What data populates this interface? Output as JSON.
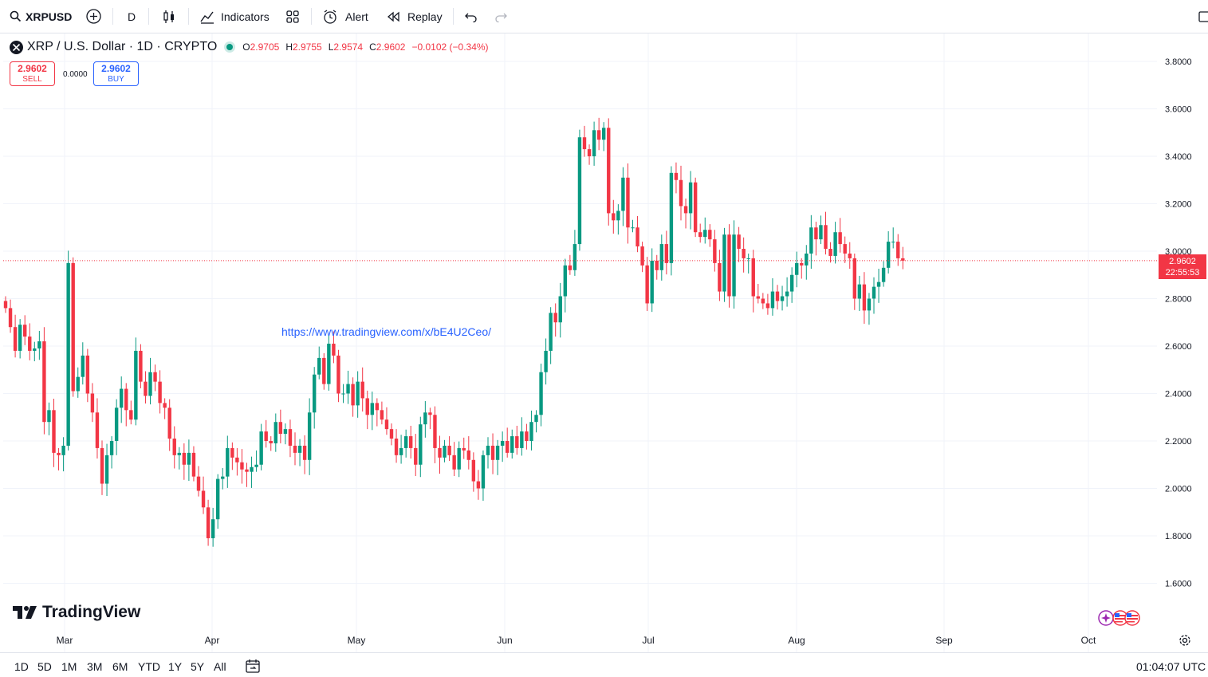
{
  "toolbar": {
    "symbol": "XRPUSD",
    "interval": "D",
    "indicators_label": "Indicators",
    "alert_label": "Alert",
    "replay_label": "Replay"
  },
  "legend": {
    "title": "XRP / U.S. Dollar · 1D · CRYPTO",
    "o_key": "O",
    "o_val": "2.9705",
    "h_key": "H",
    "h_val": "2.9755",
    "l_key": "L",
    "l_val": "2.9574",
    "c_key": "C",
    "c_val": "2.9602",
    "change": "−0.0102 (−0.34%)"
  },
  "trade": {
    "sell_price": "2.9602",
    "sell_label": "SELL",
    "spread": "0.0000",
    "buy_price": "2.9602",
    "buy_label": "BUY"
  },
  "watermark_url": "https://www.tradingview.com/x/bE4U2Ceo/",
  "brand": "TradingView",
  "price_label": {
    "price": "2.9602",
    "countdown": "22:55:53"
  },
  "bottom": {
    "ranges": [
      "1D",
      "5D",
      "1M",
      "3M",
      "6M",
      "YTD",
      "1Y",
      "5Y",
      "All"
    ],
    "clock": "01:04:07 UTC"
  },
  "colors": {
    "up": "#089981",
    "down": "#f23645",
    "grid": "#f0f3fa",
    "link": "#2962ff"
  },
  "chart_data": {
    "type": "candlestick",
    "y_ticks": [
      "3.8000",
      "3.6000",
      "3.4000",
      "3.2000",
      "3.0000",
      "2.8000",
      "2.6000",
      "2.4000",
      "2.2000",
      "2.0000",
      "1.8000",
      "1.6000"
    ],
    "ylim": [
      1.5,
      3.85
    ],
    "x_ticks": [
      "Mar",
      "Apr",
      "May",
      "Jun",
      "Jul",
      "Aug",
      "Sep",
      "Oct"
    ],
    "last_close": 2.9602,
    "closes": [
      2.76,
      2.68,
      2.58,
      2.69,
      2.64,
      2.58,
      2.59,
      2.62,
      2.28,
      2.33,
      2.15,
      2.14,
      2.18,
      2.95,
      2.41,
      2.47,
      2.56,
      2.4,
      2.32,
      2.17,
      2.02,
      2.14,
      2.2,
      2.34,
      2.42,
      2.33,
      2.29,
      2.58,
      2.45,
      2.39,
      2.49,
      2.45,
      2.36,
      2.34,
      2.21,
      2.14,
      2.15,
      2.1,
      2.15,
      2.05,
      1.99,
      1.92,
      1.79,
      1.87,
      2.04,
      2.05,
      2.17,
      2.13,
      2.11,
      2.08,
      2.07,
      2.09,
      2.1,
      2.24,
      2.2,
      2.19,
      2.28,
      2.23,
      2.25,
      2.18,
      2.15,
      2.18,
      2.12,
      2.32,
      2.48,
      2.55,
      2.44,
      2.61,
      2.56,
      2.4,
      2.4,
      2.44,
      2.35,
      2.45,
      2.38,
      2.31,
      2.36,
      2.33,
      2.29,
      2.25,
      2.21,
      2.14,
      2.17,
      2.22,
      2.17,
      2.1,
      2.27,
      2.32,
      2.31,
      2.17,
      2.13,
      2.18,
      2.14,
      2.08,
      2.17,
      2.16,
      2.12,
      2.03,
      2.0,
      2.14,
      2.18,
      2.12,
      2.18,
      2.2,
      2.15,
      2.22,
      2.17,
      2.24,
      2.2,
      2.28,
      2.31,
      2.49,
      2.58,
      2.74,
      2.7,
      2.81,
      2.94,
      2.92,
      3.03,
      3.48,
      3.43,
      3.4,
      3.51,
      3.47,
      3.52,
      3.16,
      3.13,
      3.17,
      3.31,
      3.1,
      3.1,
      3.02,
      2.94,
      2.78,
      2.96,
      2.92,
      3.03,
      2.95,
      3.33,
      3.3,
      3.19,
      3.16,
      3.29,
      3.08,
      3.06,
      3.09,
      3.05,
      2.95,
      2.83,
      3.07,
      2.81,
      3.07,
      3.01,
      2.97,
      2.97,
      2.81,
      2.8,
      2.78,
      2.76,
      2.83,
      2.79,
      2.81,
      2.83,
      2.9,
      2.95,
      2.94,
      2.99,
      3.1,
      3.05,
      3.11,
      3.01,
      2.98,
      3.08,
      3.03,
      2.99,
      2.97,
      2.8,
      2.86,
      2.75,
      2.8,
      2.85,
      2.87,
      2.93,
      3.04,
      3.04,
      2.97,
      2.96
    ]
  }
}
